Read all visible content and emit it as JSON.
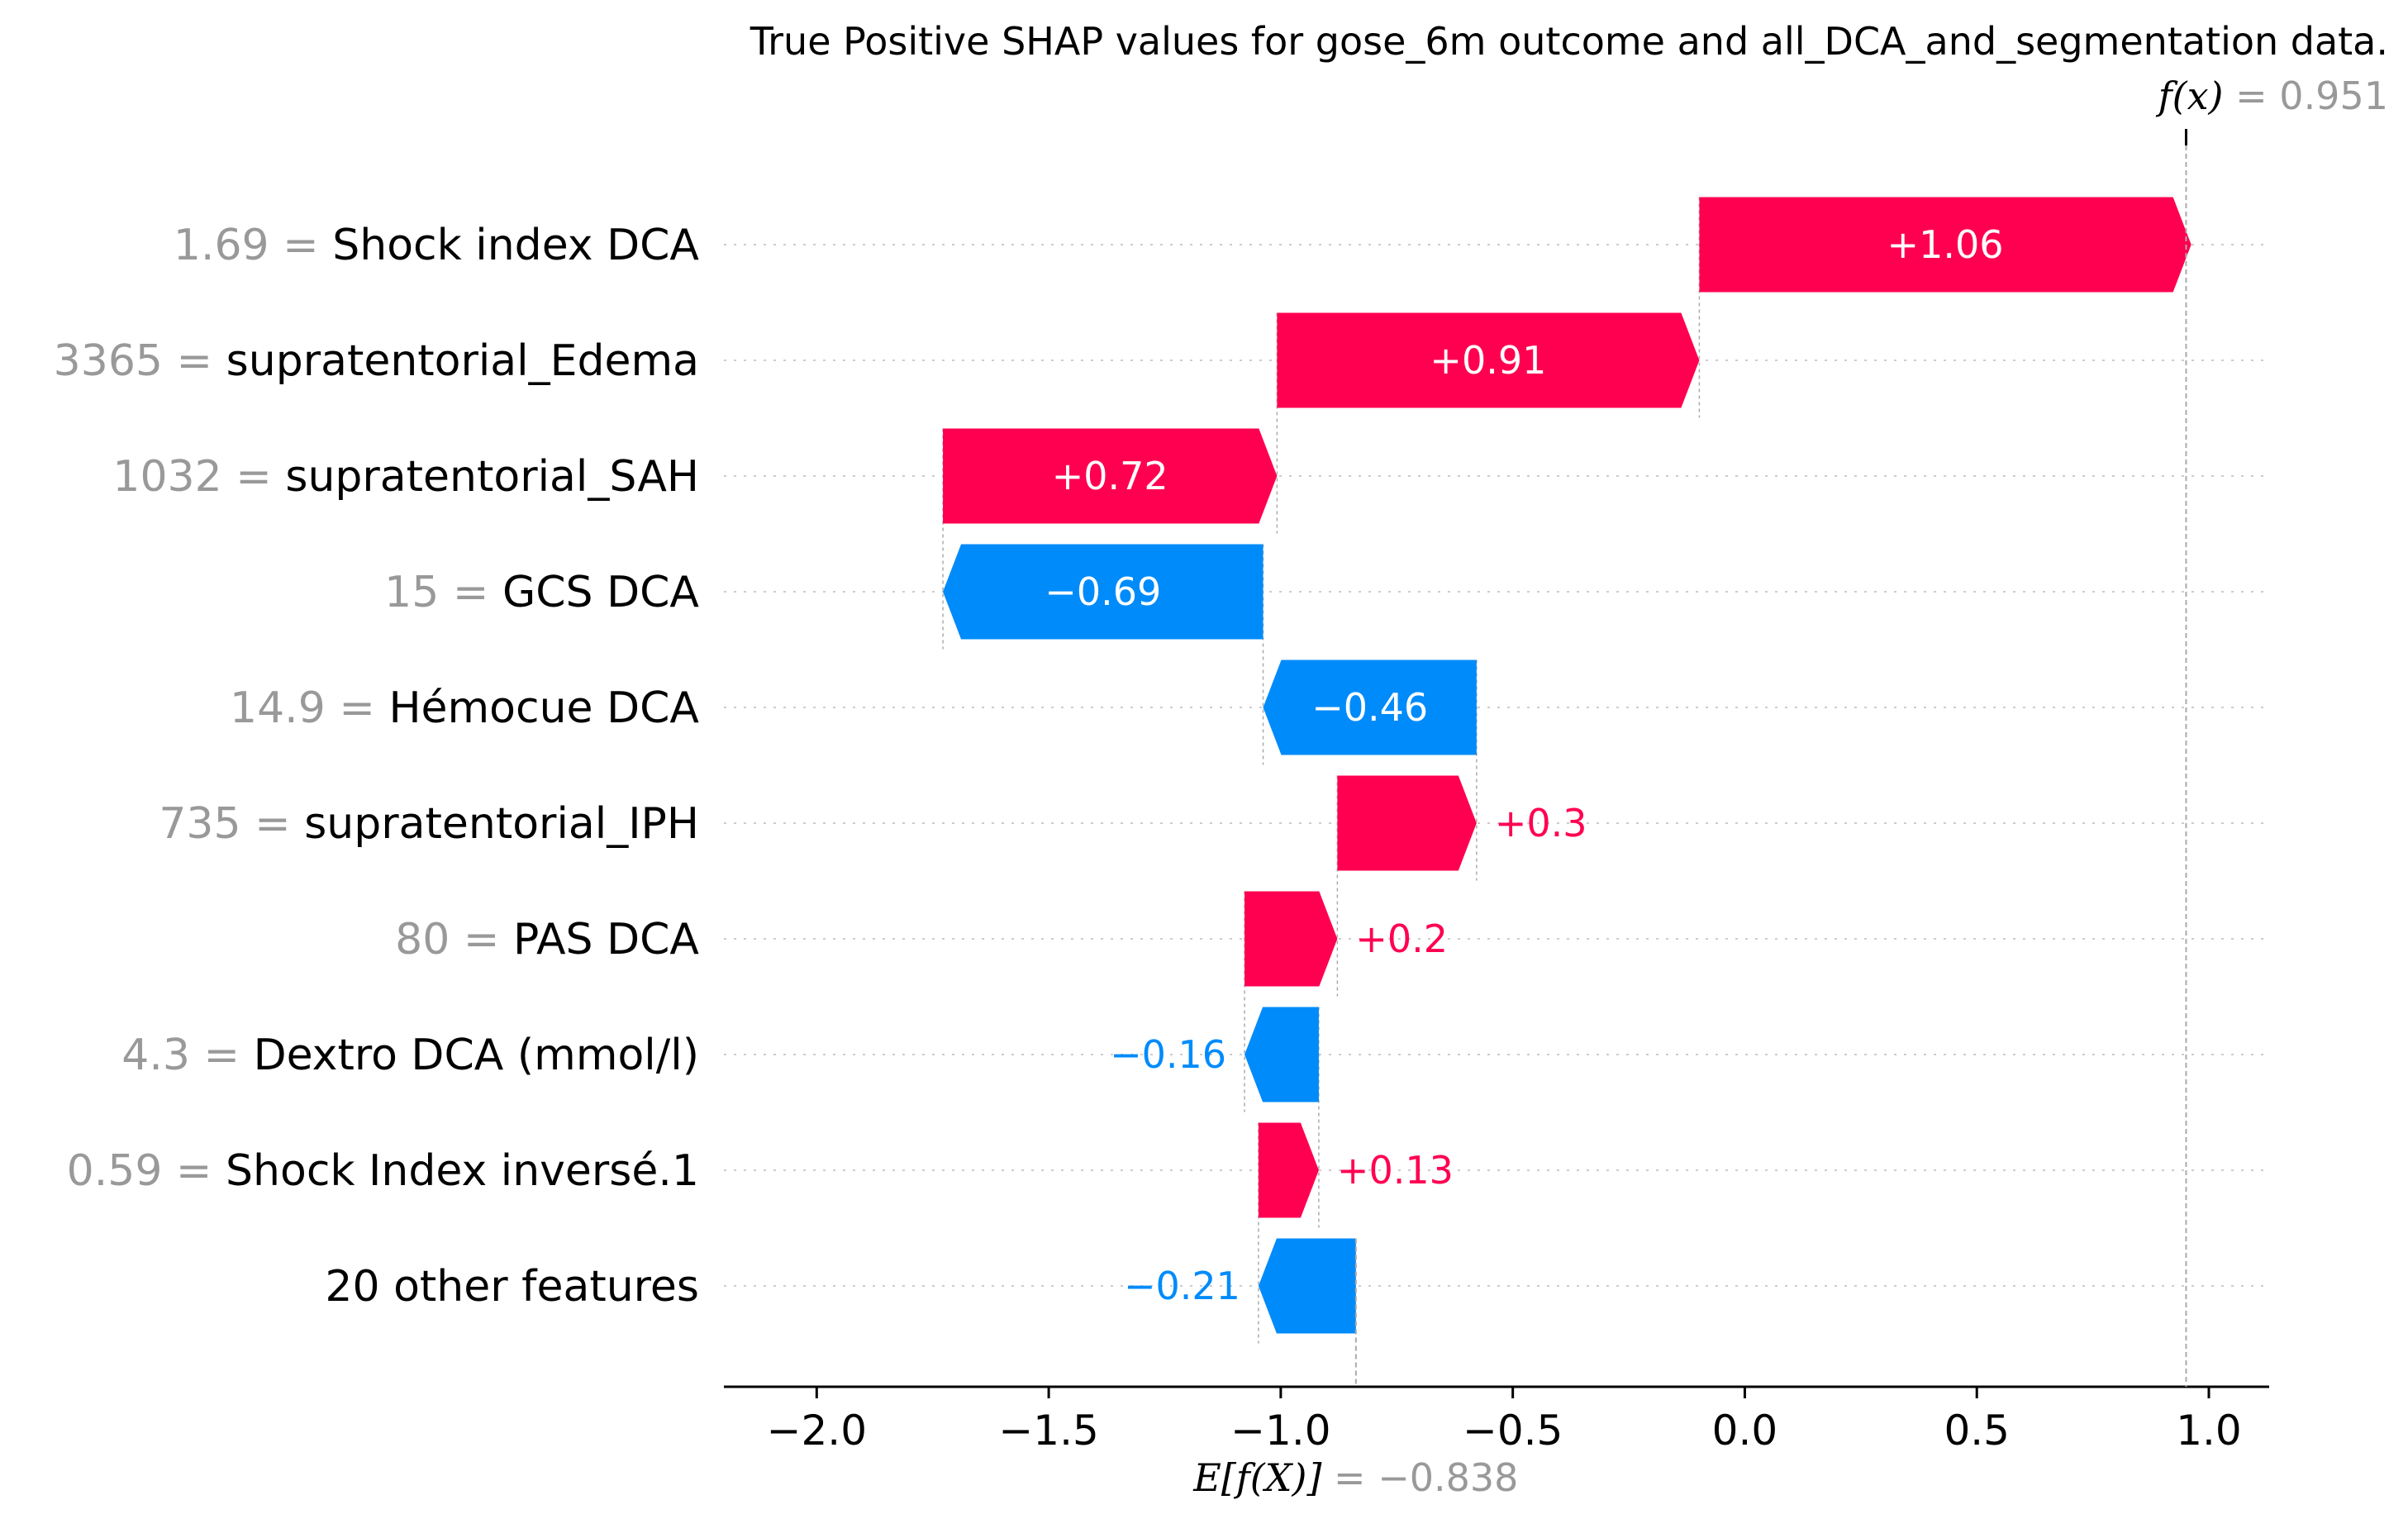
{
  "chart_data": {
    "type": "waterfall",
    "title": "True Positive SHAP values for gose_6m outcome and all_DCA_and_segmentation data.",
    "fx_label": "f(x)",
    "fx_value": "0.951",
    "fx_numeric": 0.951,
    "base_label": "E[f(X)]",
    "base_value": "−0.838",
    "base_numeric": -0.838,
    "xlim": [
      -2.2,
      1.13
    ],
    "xticks": [
      -2.0,
      -1.5,
      -1.0,
      -0.5,
      0.0,
      0.5,
      1.0
    ],
    "xtick_labels": [
      "−2.0",
      "−1.5",
      "−1.0",
      "−0.5",
      "0.0",
      "0.5",
      "1.0"
    ],
    "positive_color": "#ff0051",
    "negative_color": "#008bfb",
    "rows": [
      {
        "feature_value": "1.69",
        "feature": "Shock index DCA",
        "shap": 1.06,
        "label": "+1.06"
      },
      {
        "feature_value": "3365",
        "feature": "supratentorial_Edema",
        "shap": 0.91,
        "label": "+0.91"
      },
      {
        "feature_value": "1032",
        "feature": "supratentorial_SAH",
        "shap": 0.72,
        "label": "+0.72"
      },
      {
        "feature_value": "15",
        "feature": "GCS DCA",
        "shap": -0.69,
        "label": "−0.69"
      },
      {
        "feature_value": "14.9",
        "feature": "Hémocue DCA",
        "shap": -0.46,
        "label": "−0.46"
      },
      {
        "feature_value": "735",
        "feature": "supratentorial_IPH",
        "shap": 0.3,
        "label": "+0.3"
      },
      {
        "feature_value": "80",
        "feature": "PAS DCA",
        "shap": 0.2,
        "label": "+0.2"
      },
      {
        "feature_value": "4.3",
        "feature": "Dextro DCA (mmol/l)",
        "shap": -0.16,
        "label": "−0.16"
      },
      {
        "feature_value": "0.59",
        "feature": "Shock Index inversé.1",
        "shap": 0.13,
        "label": "+0.13"
      },
      {
        "feature_value": "",
        "feature": "20 other features",
        "shap": -0.21,
        "label": "−0.21"
      }
    ]
  }
}
